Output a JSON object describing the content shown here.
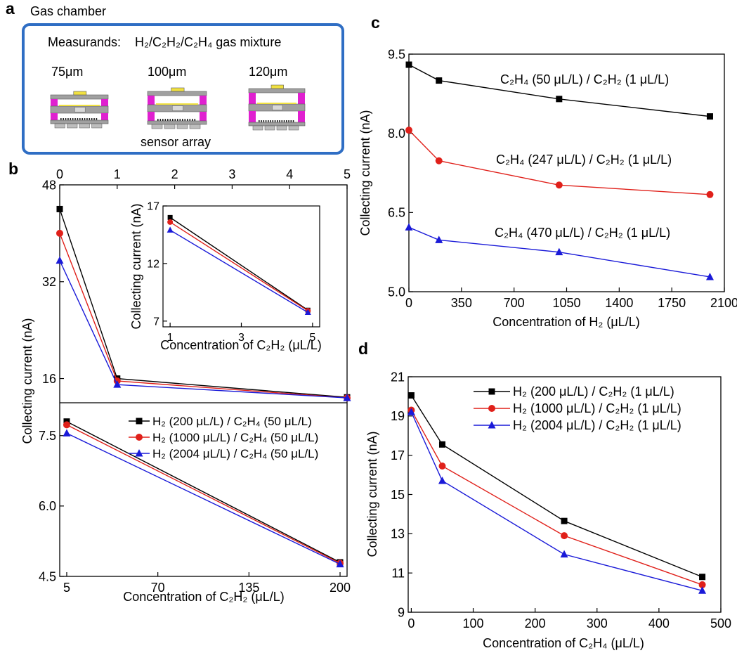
{
  "panel_a": {
    "label": "a",
    "title": "Gas chamber",
    "measurands_label": "Measurands:",
    "measurands_value": "H₂/C₂H₂/C₂H₄ gas mixture",
    "sizes": [
      "75μm",
      "100μm",
      "120μm"
    ],
    "array_label": "sensor array",
    "colors": {
      "frame": "#2f6ec4",
      "electrode": "#e020d0",
      "pad": "#f0e040",
      "plate": "#a0a0a0"
    }
  },
  "series_colors": [
    "#000000",
    "#e0201a",
    "#1a1ad8"
  ],
  "marker_shapes": [
    "square",
    "circle",
    "triangle"
  ],
  "chart_data": [
    {
      "id": "b_top",
      "panel": "b",
      "type": "line",
      "xlim": [
        0,
        5
      ],
      "ylim": [
        12,
        48
      ],
      "x_ticks": [
        0,
        1,
        2,
        3,
        4,
        5
      ],
      "y_ticks": [
        16,
        32,
        48
      ],
      "ylabel": "Collecting current (nA)",
      "x": [
        0,
        1,
        5
      ],
      "series": [
        {
          "values": [
            44.0,
            16.0,
            12.9
          ]
        },
        {
          "values": [
            40.0,
            15.6,
            12.8
          ]
        },
        {
          "values": [
            35.5,
            15.0,
            12.8
          ]
        }
      ]
    },
    {
      "id": "b_bottom",
      "panel": "b",
      "type": "line",
      "xlim": [
        0,
        205
      ],
      "ylim": [
        4.5,
        8.2
      ],
      "x_ticks": [
        5,
        70,
        135,
        200
      ],
      "y_ticks": [
        4.5,
        6.0,
        7.5
      ],
      "xlabel": "Concentration of C₂H₂ (μL/L)",
      "x": [
        5,
        200
      ],
      "series": [
        {
          "name": "H₂  (200 μL/L) / C₂H₄ (50 μL/L)",
          "values": [
            7.8,
            4.8
          ]
        },
        {
          "name": "H₂  (1000 μL/L) / C₂H₄ (50 μL/L)",
          "values": [
            7.73,
            4.78
          ]
        },
        {
          "name": "H₂  (2004 μL/L) / C₂H₄ (50 μL/L)",
          "values": [
            7.55,
            4.76
          ]
        }
      ],
      "legend": "upper-right"
    },
    {
      "id": "b_inset",
      "panel": "b",
      "type": "line",
      "xlim": [
        0.8,
        5.2
      ],
      "ylim": [
        6.5,
        17
      ],
      "x_ticks": [
        1,
        3,
        5
      ],
      "y_ticks": [
        7,
        12,
        17
      ],
      "xlabel": "Concentration of C₂H₂ (μL/L)",
      "ylabel": "Collecting current (nA)",
      "x": [
        1,
        4.87
      ],
      "series": [
        {
          "values": [
            16.0,
            7.95
          ]
        },
        {
          "values": [
            15.6,
            7.9
          ]
        },
        {
          "values": [
            14.9,
            7.75
          ]
        }
      ]
    },
    {
      "id": "c",
      "panel": "c",
      "type": "line",
      "xlim": [
        0,
        2100
      ],
      "ylim": [
        5.0,
        9.5
      ],
      "x_ticks": [
        0,
        350,
        700,
        1050,
        1400,
        1750,
        2100
      ],
      "y_ticks": [
        5.0,
        6.5,
        8.0,
        9.5
      ],
      "xlabel": "Concentration of H₂ (μL/L)",
      "ylabel": "Collecting current (nA)",
      "x": [
        0,
        200,
        1000,
        2004
      ],
      "series": [
        {
          "name": "C₂H₄ (50 μL/L) / C₂H₂ (1 μL/L)",
          "values": [
            9.3,
            9.0,
            8.65,
            8.32
          ]
        },
        {
          "name": "C₂H₄ (247 μL/L) / C₂H₂ (1 μL/L)",
          "values": [
            8.06,
            7.48,
            7.02,
            6.84
          ]
        },
        {
          "name": "C₂H₄ (470 μL/L) / C₂H₂ (1 μL/L)",
          "values": [
            6.22,
            5.98,
            5.75,
            5.28
          ]
        }
      ]
    },
    {
      "id": "d",
      "panel": "d",
      "type": "line",
      "xlim": [
        -5,
        500
      ],
      "ylim": [
        9,
        21
      ],
      "x_ticks": [
        0,
        100,
        200,
        300,
        400,
        500
      ],
      "y_ticks": [
        9,
        11,
        13,
        15,
        17,
        19,
        21
      ],
      "xlabel": "Concentration of C₂H₄ (μL/L)",
      "ylabel": "Collecting current (nA)",
      "x": [
        0,
        50,
        247,
        470
      ],
      "series": [
        {
          "name": "H₂ (200 μL/L) / C₂H₂ (1 μL/L)",
          "values": [
            20.05,
            17.55,
            13.65,
            10.8
          ]
        },
        {
          "name": "H₂ (1000 μL/L) / C₂H₂ (1 μL/L)",
          "values": [
            19.3,
            16.45,
            12.9,
            10.4
          ]
        },
        {
          "name": "H₂ (2004 μL/L) / C₂H₂ (1 μL/L)",
          "values": [
            19.2,
            15.7,
            11.95,
            10.1
          ]
        }
      ],
      "legend": "top-right"
    }
  ]
}
